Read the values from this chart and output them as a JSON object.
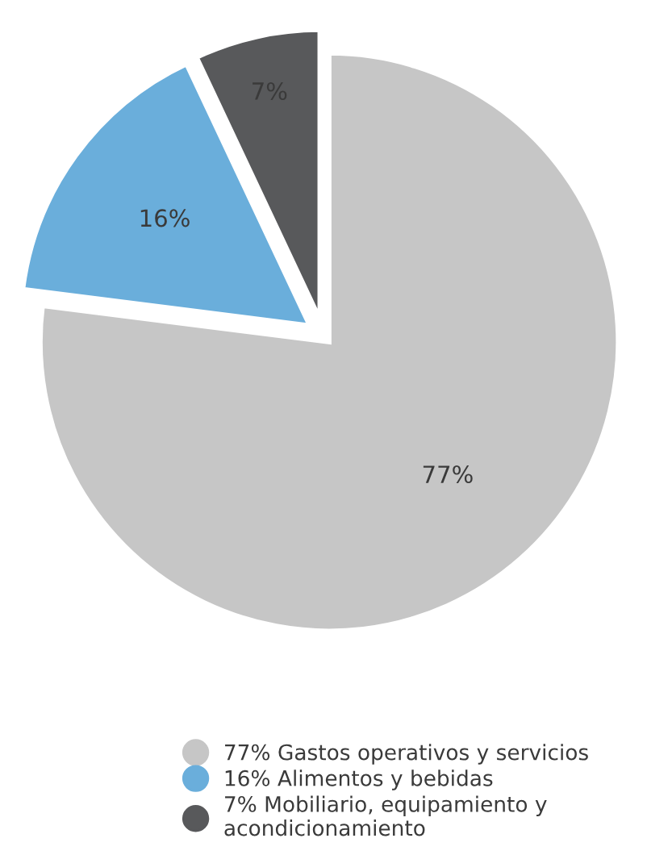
{
  "chart_data": {
    "type": "pie",
    "categories": [
      "77% Gastos operativos y servicios",
      "16% Alimentos y bebidas",
      "7% Mobiliario, equipamiento y\nacondicionamiento"
    ],
    "values": [
      77,
      16,
      7
    ],
    "colors": [
      "#c6c6c6",
      "#6aaedb",
      "#58595b"
    ],
    "value_labels": [
      "77%",
      "16%",
      "7%"
    ],
    "legend": "bottom"
  }
}
